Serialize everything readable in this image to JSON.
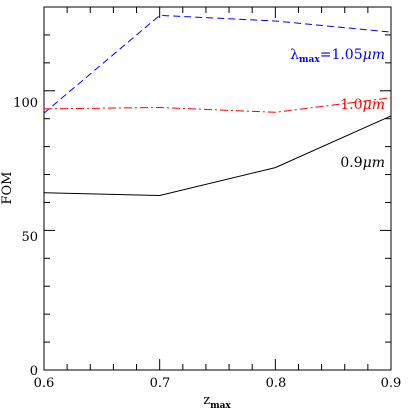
{
  "chart_data": {
    "type": "line",
    "xlabel": "z",
    "xlabel_sub": "max",
    "ylabel": "FOM",
    "xlim": [
      0.6,
      0.9
    ],
    "ylim": [
      0,
      130
    ],
    "xticks": [
      "0.6",
      "0.7",
      "0.8",
      "0.9"
    ],
    "yticks": [
      "0",
      "50",
      "100"
    ],
    "x": [
      0.6,
      0.7,
      0.8,
      0.9
    ],
    "series": [
      {
        "name": "λmax=1.05μm",
        "label_main": "λ",
        "label_sub": "max",
        "label_rest": "=1.05",
        "label_unit": "μm",
        "values": [
          92,
          127,
          125,
          121
        ],
        "color": "#0000ff",
        "dash": "dashed"
      },
      {
        "name": "1.0μm",
        "label_main": "1.0",
        "label_unit": "μm",
        "values": [
          93.5,
          94,
          92.3,
          97.5
        ],
        "color": "#ff0000",
        "dash": "dash-dot"
      },
      {
        "name": "0.9μm",
        "label_main": "0.9",
        "label_unit": "μm",
        "values": [
          63.5,
          62.5,
          72.5,
          91
        ],
        "color": "#000000",
        "dash": "solid"
      }
    ],
    "grid": false,
    "legend": "inline labels near right end of each line"
  }
}
